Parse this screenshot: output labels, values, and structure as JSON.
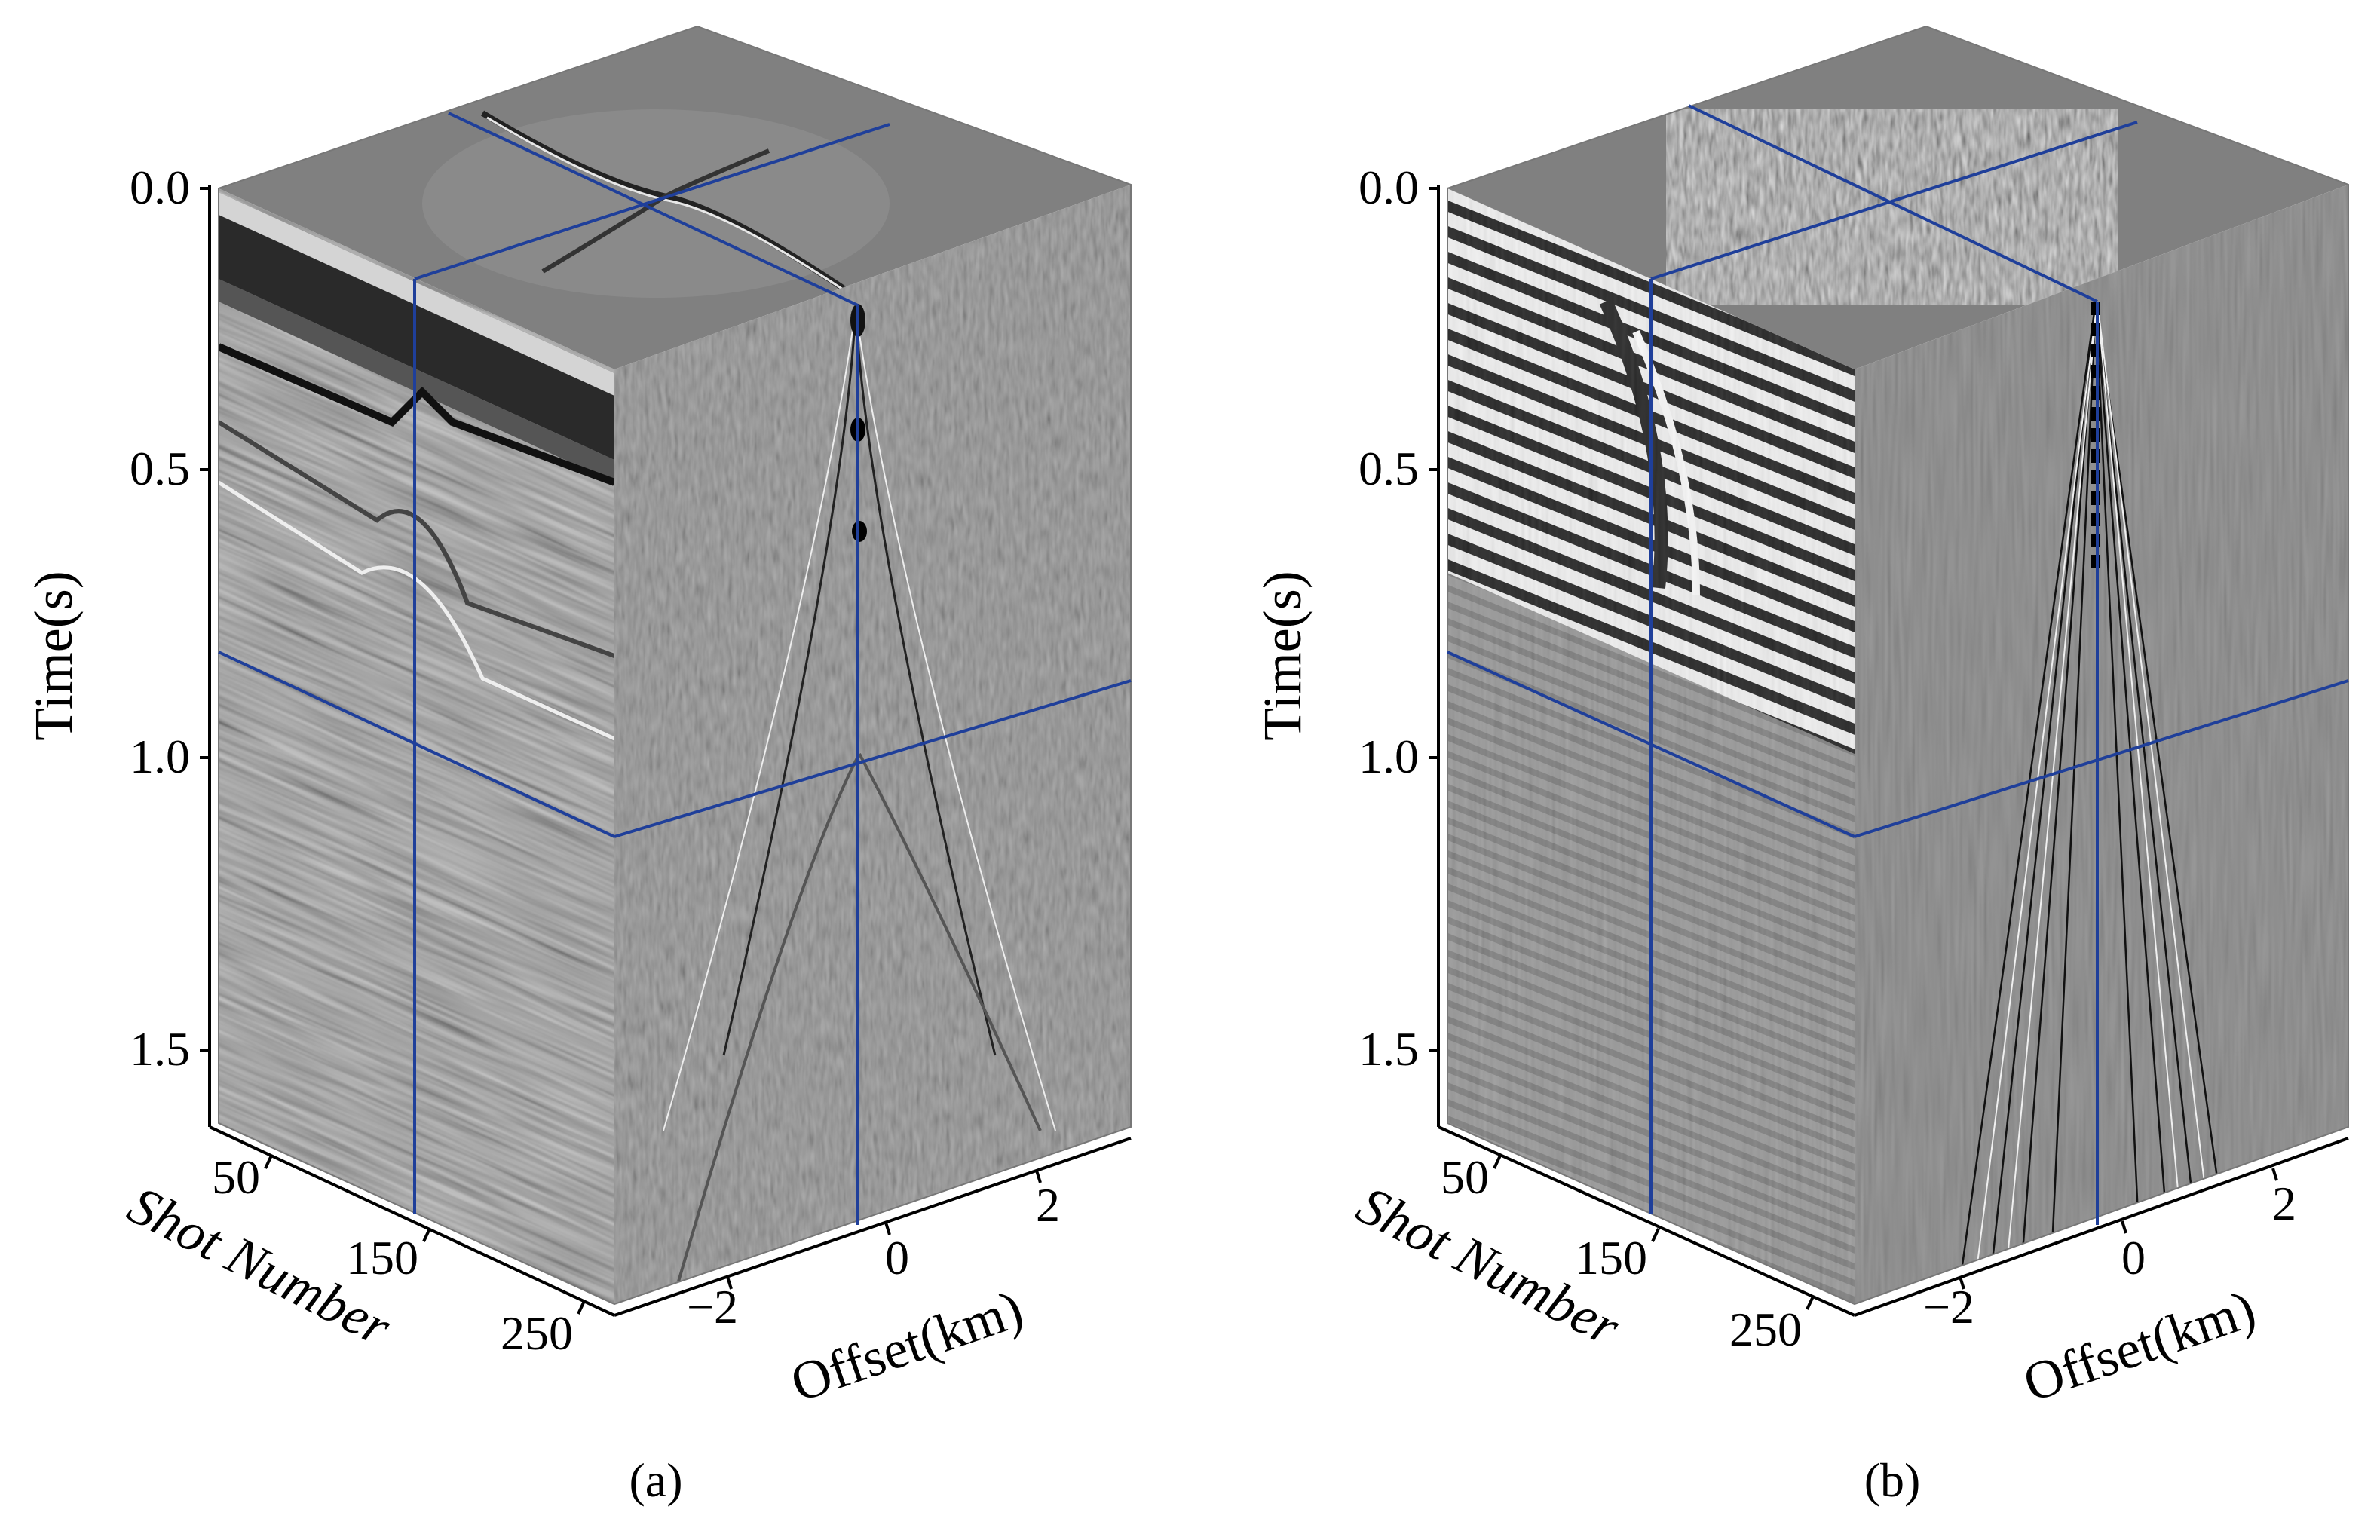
{
  "panels": [
    {
      "id": "a",
      "caption": "(a)",
      "time_axis": {
        "label": "Time(s)",
        "ticks": [
          "0.0",
          "0.5",
          "1.0",
          "1.5"
        ]
      },
      "shot_axis": {
        "label": "Shot Number",
        "ticks": [
          "50",
          "150",
          "250"
        ]
      },
      "offset_axis": {
        "label": "Offset(km)",
        "ticks": [
          "−2",
          "0",
          "2"
        ]
      },
      "style": "raw-shot-gathers"
    },
    {
      "id": "b",
      "caption": "(b)",
      "time_axis": {
        "label": "Time(s)",
        "ticks": [
          "0.0",
          "0.5",
          "1.0",
          "1.5"
        ]
      },
      "shot_axis": {
        "label": "Shot Number",
        "ticks": [
          "50",
          "150",
          "250"
        ]
      },
      "offset_axis": {
        "label": "Offset(km)",
        "ticks": [
          "−2",
          "0",
          "2"
        ]
      },
      "style": "separated-noise"
    }
  ],
  "colors": {
    "slice_line": "#1f3f9a",
    "background_gray": "#808080",
    "axis": "#000000"
  }
}
